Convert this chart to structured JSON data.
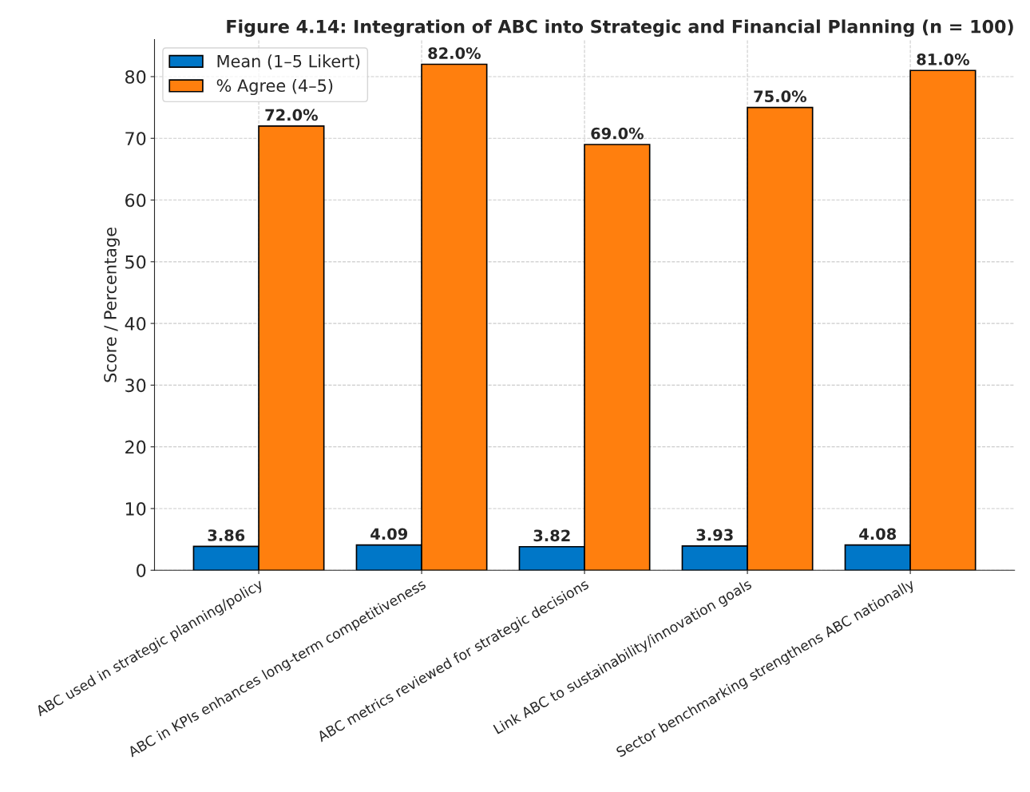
{
  "chart_data": {
    "type": "bar",
    "title": "Figure 4.14: Integration of ABC into Strategic and Financial Planning (n = 100)",
    "ylabel": "Score / Percentage",
    "categories": [
      "ABC used in strategic planning/policy",
      "ABC in KPIs enhances long-term competitiveness",
      "ABC metrics reviewed for strategic decisions",
      "Link ABC to sustainability/innovation goals",
      "Sector benchmarking strengthens ABC nationally"
    ],
    "series": [
      {
        "name": "Mean (1–5 Likert)",
        "color": "#0077c8",
        "values": [
          3.86,
          4.09,
          3.82,
          3.93,
          4.08
        ],
        "value_labels": [
          "3.86",
          "4.09",
          "3.82",
          "3.93",
          "4.08"
        ]
      },
      {
        "name": "% Agree (4–5)",
        "color": "#ff7f0e",
        "values": [
          72.0,
          82.0,
          69.0,
          75.0,
          81.0
        ],
        "value_labels": [
          "72.0%",
          "82.0%",
          "69.0%",
          "75.0%",
          "81.0%"
        ]
      }
    ],
    "ylim": [
      0,
      86
    ],
    "yticks": [
      0,
      10,
      20,
      30,
      40,
      50,
      60,
      70,
      80
    ],
    "grid": true,
    "legend": "top left"
  }
}
